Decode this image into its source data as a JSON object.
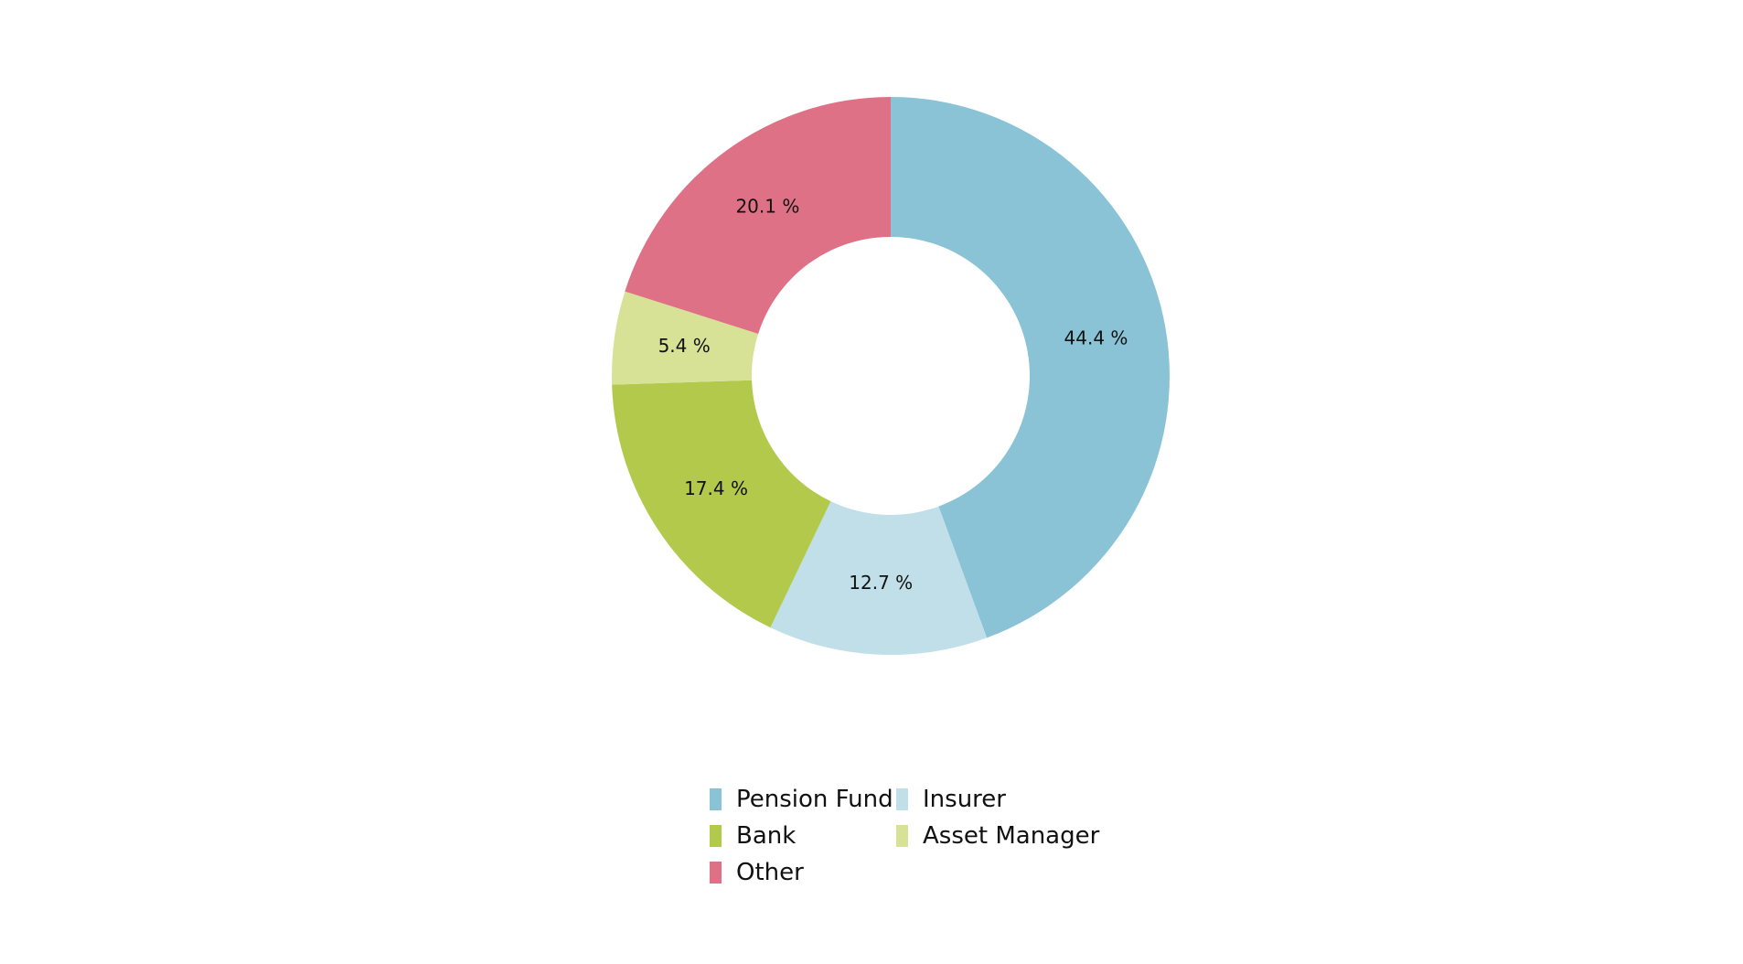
{
  "chart_data": {
    "type": "pie",
    "donut": true,
    "title": "",
    "categories": [
      "Pension Fund",
      "Insurer",
      "Bank",
      "Asset Manager",
      "Other"
    ],
    "values": [
      44.4,
      12.7,
      17.4,
      5.4,
      20.1
    ],
    "labels": [
      "44.4 %",
      "12.7 %",
      "17.4 %",
      "5.4 %",
      "20.1 %"
    ],
    "colors": [
      "#8ac3d6",
      "#c0dfe8",
      "#b2c94c",
      "#d7e296",
      "#df7187"
    ],
    "start": "top, clockwise",
    "legend_placement": "bottom",
    "legend": [
      "Pension Fund",
      "Insurer",
      "Bank",
      "Asset Manager",
      "Other"
    ]
  }
}
